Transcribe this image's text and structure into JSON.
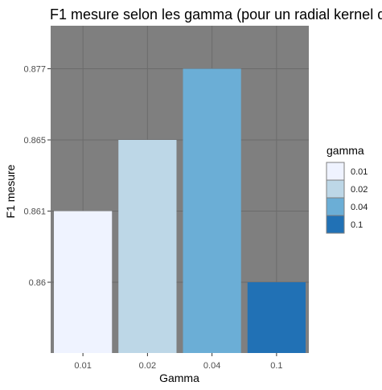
{
  "chart_data": {
    "type": "bar",
    "title": "F1 mesure selon les gamma (pour un radial kernel d",
    "xlabel": "Gamma",
    "ylabel": "F1 mesure",
    "categories": [
      "0.01",
      "0.02",
      "0.04",
      "0.1"
    ],
    "values": [
      0.861,
      0.865,
      0.877,
      0.86
    ],
    "y_ticks": [
      "0.86",
      "0.861",
      "0.865",
      "0.877"
    ],
    "bar_colors": [
      "#eff3ff",
      "#bdd7e7",
      "#6baed6",
      "#2171b5"
    ],
    "panel_background": "#7f7f7f",
    "grid_color": "#6b6b6b",
    "grid": true,
    "legend": {
      "title": "gamma",
      "position": "right",
      "entries": [
        "0.01",
        "0.02",
        "0.04",
        "0.1"
      ]
    }
  }
}
